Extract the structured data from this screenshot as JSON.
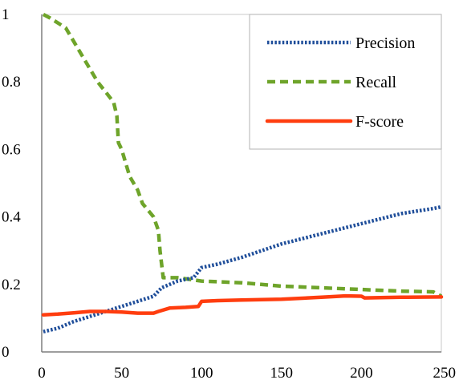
{
  "chart_data": {
    "type": "line",
    "title": "",
    "xlabel": "",
    "ylabel": "",
    "xlim": [
      0,
      250
    ],
    "ylim": [
      0,
      1
    ],
    "x_ticks": [
      0,
      50,
      100,
      150,
      200,
      250
    ],
    "y_ticks": [
      0,
      0.2,
      0.4,
      0.6,
      0.8,
      1
    ],
    "y_tick_labels": [
      "0",
      "0.2",
      "0.4",
      "0.6",
      "0.8",
      "1"
    ],
    "grid": false,
    "legend_position": "top-right",
    "series": [
      {
        "name": "Precision",
        "color": "#1F4E9A",
        "style": "dotted",
        "points": [
          [
            1,
            0.06
          ],
          [
            10,
            0.07
          ],
          [
            20,
            0.09
          ],
          [
            30,
            0.105
          ],
          [
            40,
            0.12
          ],
          [
            50,
            0.135
          ],
          [
            60,
            0.15
          ],
          [
            70,
            0.165
          ],
          [
            75,
            0.19
          ],
          [
            85,
            0.21
          ],
          [
            95,
            0.22
          ],
          [
            100,
            0.25
          ],
          [
            110,
            0.26
          ],
          [
            125,
            0.28
          ],
          [
            150,
            0.32
          ],
          [
            175,
            0.35
          ],
          [
            200,
            0.38
          ],
          [
            225,
            0.41
          ],
          [
            245,
            0.425
          ],
          [
            250,
            0.43
          ]
        ]
      },
      {
        "name": "Recall",
        "color": "#6EA42A",
        "style": "dashed",
        "points": [
          [
            1,
            1.0
          ],
          [
            5,
            0.99
          ],
          [
            15,
            0.96
          ],
          [
            25,
            0.88
          ],
          [
            35,
            0.8
          ],
          [
            40,
            0.77
          ],
          [
            45,
            0.74
          ],
          [
            47,
            0.7
          ],
          [
            48,
            0.62
          ],
          [
            50,
            0.6
          ],
          [
            55,
            0.52
          ],
          [
            60,
            0.48
          ],
          [
            63,
            0.44
          ],
          [
            70,
            0.4
          ],
          [
            73,
            0.36
          ],
          [
            74,
            0.3
          ],
          [
            76,
            0.22
          ],
          [
            85,
            0.22
          ],
          [
            100,
            0.21
          ],
          [
            125,
            0.205
          ],
          [
            150,
            0.195
          ],
          [
            175,
            0.19
          ],
          [
            200,
            0.185
          ],
          [
            225,
            0.18
          ],
          [
            245,
            0.178
          ],
          [
            250,
            0.165
          ]
        ]
      },
      {
        "name": "F-score",
        "color": "#FF3D0F",
        "style": "solid",
        "points": [
          [
            1,
            0.11
          ],
          [
            10,
            0.112
          ],
          [
            20,
            0.116
          ],
          [
            30,
            0.12
          ],
          [
            40,
            0.12
          ],
          [
            50,
            0.118
          ],
          [
            60,
            0.115
          ],
          [
            70,
            0.115
          ],
          [
            73,
            0.12
          ],
          [
            80,
            0.13
          ],
          [
            90,
            0.132
          ],
          [
            98,
            0.135
          ],
          [
            100,
            0.15
          ],
          [
            110,
            0.152
          ],
          [
            125,
            0.154
          ],
          [
            150,
            0.156
          ],
          [
            175,
            0.162
          ],
          [
            190,
            0.166
          ],
          [
            200,
            0.165
          ],
          [
            202,
            0.16
          ],
          [
            225,
            0.162
          ],
          [
            250,
            0.163
          ]
        ]
      }
    ]
  }
}
